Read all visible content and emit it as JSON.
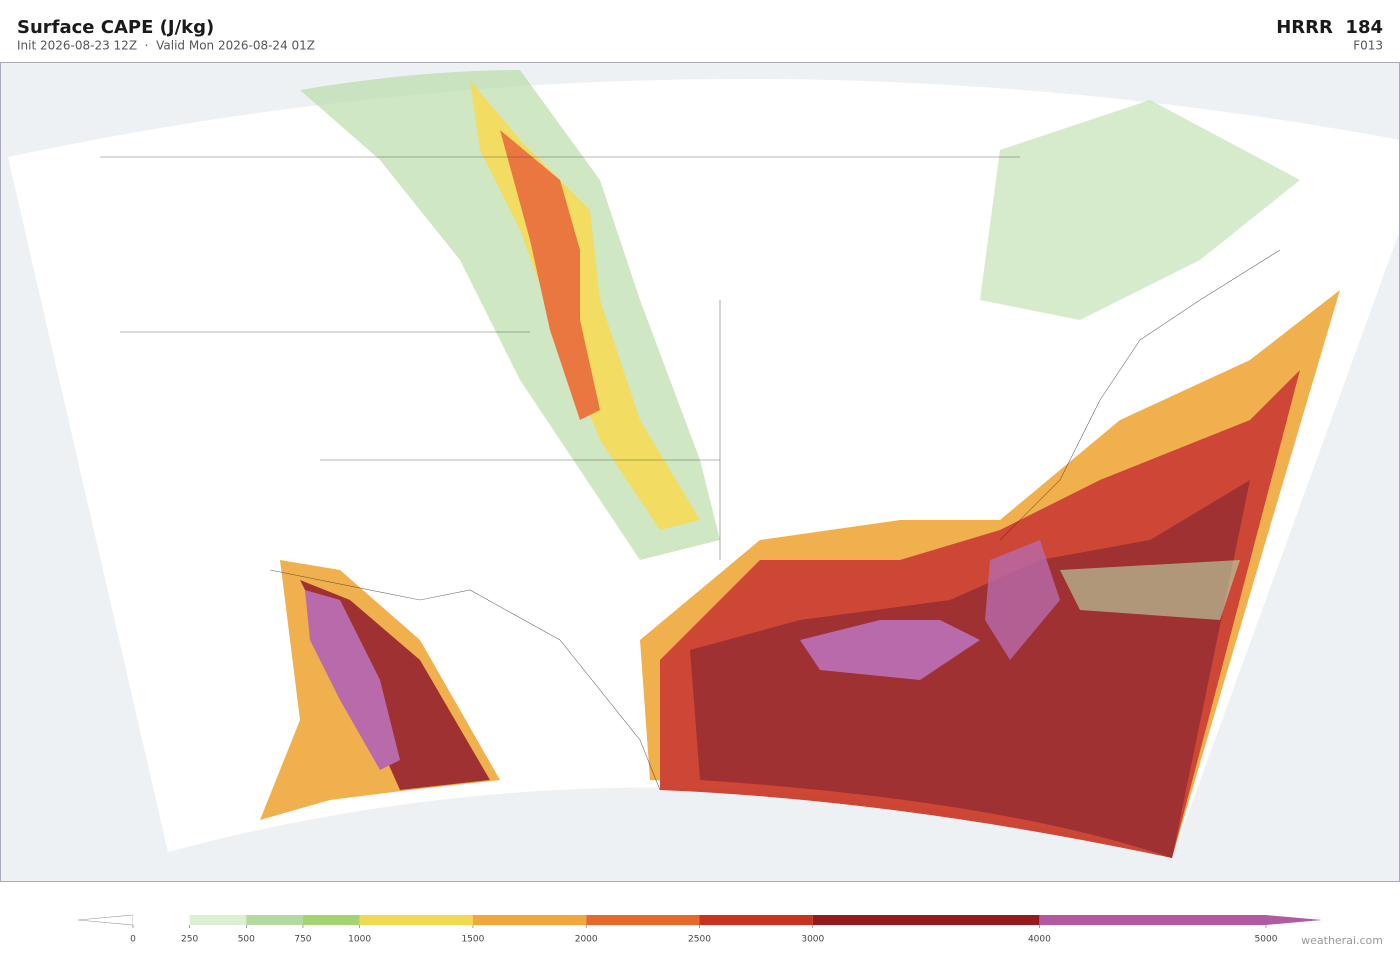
{
  "header": {
    "title": "Surface CAPE  (J/kg)",
    "subtitle": "Init 2026-08-23 12Z  ·  Valid Mon 2026-08-24 01Z",
    "model": "HRRR  184",
    "forecast_hour": "F013"
  },
  "colorbar": {
    "levels": [
      0,
      250,
      500,
      750,
      1000,
      1500,
      2000,
      2500,
      3000,
      4000,
      5000
    ],
    "colors": [
      "#ffffff",
      "#dcefd3",
      "#b2d9a0",
      "#a4d46f",
      "#f2d851",
      "#f0a83a",
      "#e8682a",
      "#c9321f",
      "#961a1b",
      "#b05aa2"
    ]
  },
  "footer": {
    "credit": "weatherai.com"
  }
}
